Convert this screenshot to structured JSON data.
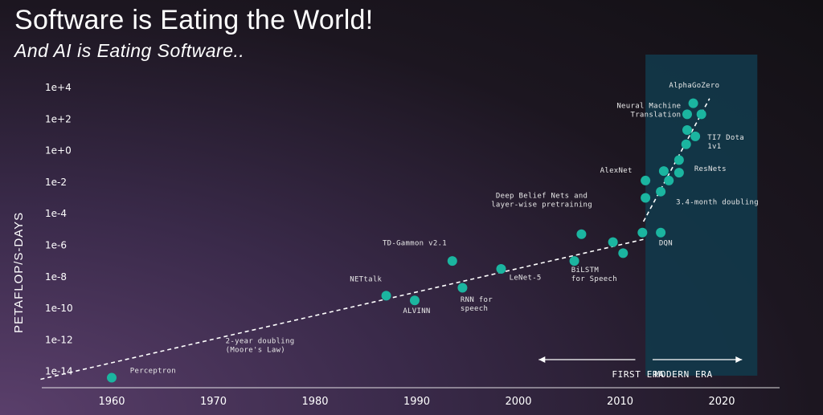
{
  "header": {
    "title": "Software is Eating the World!",
    "subtitle": "And AI is Eating Software.."
  },
  "colors": {
    "point": "#1bb5a0",
    "modern_band": "#12384a",
    "trend": "#ffffff"
  },
  "chart_data": {
    "type": "scatter",
    "title": "Software is Eating the World!",
    "subtitle": "And AI is Eating Software..",
    "xlabel": "",
    "ylabel": "PETAFLOP/S-DAYS",
    "yscale": "log",
    "xlim": [
      1953,
      2025
    ],
    "ylim_exp": [
      -15,
      5
    ],
    "x_ticks": [
      1960,
      1970,
      1980,
      1990,
      2000,
      2010,
      2020
    ],
    "y_ticks": [
      {
        "exp": 4,
        "label": "1e+4"
      },
      {
        "exp": 2,
        "label": "1e+2"
      },
      {
        "exp": 0,
        "label": "1e+0"
      },
      {
        "exp": -2,
        "label": "1e-2"
      },
      {
        "exp": -4,
        "label": "1e-4"
      },
      {
        "exp": -6,
        "label": "1e-6"
      },
      {
        "exp": -8,
        "label": "1e-8"
      },
      {
        "exp": -10,
        "label": "1e-10"
      },
      {
        "exp": -12,
        "label": "1e-12"
      },
      {
        "exp": -14,
        "label": "1e-14"
      }
    ],
    "points": [
      {
        "x": 1960.0,
        "y_exp": -14.4
      },
      {
        "x": 1987.0,
        "y_exp": -9.2
      },
      {
        "x": 1989.8,
        "y_exp": -9.5
      },
      {
        "x": 1993.5,
        "y_exp": -7.0
      },
      {
        "x": 1994.5,
        "y_exp": -8.7
      },
      {
        "x": 1998.3,
        "y_exp": -7.5
      },
      {
        "x": 2005.5,
        "y_exp": -7.0
      },
      {
        "x": 2006.2,
        "y_exp": -5.3
      },
      {
        "x": 2009.3,
        "y_exp": -5.8
      },
      {
        "x": 2010.3,
        "y_exp": -6.5
      },
      {
        "x": 2012.2,
        "y_exp": -5.2
      },
      {
        "x": 2012.5,
        "y_exp": -3.0
      },
      {
        "x": 2012.5,
        "y_exp": -1.9
      },
      {
        "x": 2014.0,
        "y_exp": -5.2
      },
      {
        "x": 2014.0,
        "y_exp": -2.6
      },
      {
        "x": 2014.3,
        "y_exp": -1.3
      },
      {
        "x": 2014.8,
        "y_exp": -1.9
      },
      {
        "x": 2015.8,
        "y_exp": -0.6
      },
      {
        "x": 2015.8,
        "y_exp": -1.4
      },
      {
        "x": 2016.5,
        "y_exp": 0.4
      },
      {
        "x": 2016.6,
        "y_exp": 1.3
      },
      {
        "x": 2016.6,
        "y_exp": 2.3
      },
      {
        "x": 2017.4,
        "y_exp": 0.9
      },
      {
        "x": 2017.2,
        "y_exp": 3.0
      },
      {
        "x": 2018.0,
        "y_exp": 2.3
      }
    ],
    "trend_lines": [
      {
        "name": "2-year doubling (Moore's Law)",
        "x0": 1953,
        "y0_exp": -14.5,
        "x1": 2012.5,
        "y1_exp": -5.6
      },
      {
        "name": "3.4-month doubling",
        "x0": 2012.3,
        "y0_exp": -4.5,
        "x1": 2018.8,
        "y1_exp": 3.3
      }
    ],
    "modern_era_band": {
      "x0": 2012.5,
      "x1": 2023.5
    },
    "annotations": [
      {
        "lines": [
          "AlphaGoZero"
        ],
        "x": 2017.3,
        "y_exp": 4.0,
        "anchor": "middle"
      },
      {
        "lines": [
          "Neural Machine",
          "Translation"
        ],
        "x": 2016.0,
        "y_exp": 2.7,
        "anchor": "end"
      },
      {
        "lines": [
          "TI7 Dota",
          "1v1"
        ],
        "x": 2018.6,
        "y_exp": 0.7,
        "anchor": "start"
      },
      {
        "lines": [
          "AlexNet"
        ],
        "x": 2011.2,
        "y_exp": -1.4,
        "anchor": "end"
      },
      {
        "lines": [
          "ResNets"
        ],
        "x": 2017.3,
        "y_exp": -1.3,
        "anchor": "start"
      },
      {
        "lines": [
          "3.4-month doubling"
        ],
        "x": 2015.5,
        "y_exp": -3.4,
        "anchor": "start"
      },
      {
        "lines": [
          "Deep Belief Nets and",
          "layer-wise pretraining"
        ],
        "x": 2002.3,
        "y_exp": -3.0,
        "anchor": "middle"
      },
      {
        "lines": [
          "DQN"
        ],
        "x": 2014.5,
        "y_exp": -6.0,
        "anchor": "middle"
      },
      {
        "lines": [
          "TD-Gammon v2.1"
        ],
        "x": 1989.8,
        "y_exp": -6.0,
        "anchor": "middle"
      },
      {
        "lines": [
          "NETtalk"
        ],
        "x": 1985.0,
        "y_exp": -8.3,
        "anchor": "middle"
      },
      {
        "lines": [
          "LeNet-5"
        ],
        "x": 1999.1,
        "y_exp": -8.2,
        "anchor": "start"
      },
      {
        "lines": [
          "BiLSTM",
          "for Speech"
        ],
        "x": 2005.2,
        "y_exp": -7.7,
        "anchor": "start"
      },
      {
        "lines": [
          "RNN for",
          "speech"
        ],
        "x": 1994.3,
        "y_exp": -9.6,
        "anchor": "start"
      },
      {
        "lines": [
          "ALVINN"
        ],
        "x": 1990.0,
        "y_exp": -10.3,
        "anchor": "middle"
      },
      {
        "lines": [
          "2-year doubling",
          "(Moore's Law)"
        ],
        "x": 1971.2,
        "y_exp": -12.2,
        "anchor": "start"
      },
      {
        "lines": [
          "Perceptron"
        ],
        "x": 1961.8,
        "y_exp": -14.1,
        "anchor": "start"
      }
    ],
    "eras": [
      {
        "label": "FIRST ERA",
        "arrow_direction": "left",
        "arrow_x0": 2002.0,
        "arrow_x1": 2011.5,
        "label_x": 2009.2,
        "y_exp": -13.25
      },
      {
        "label": "MODERN ERA",
        "arrow_direction": "right",
        "arrow_x0": 2013.2,
        "arrow_x1": 2022.0,
        "label_x": 2013.4,
        "y_exp": -13.25
      }
    ]
  }
}
